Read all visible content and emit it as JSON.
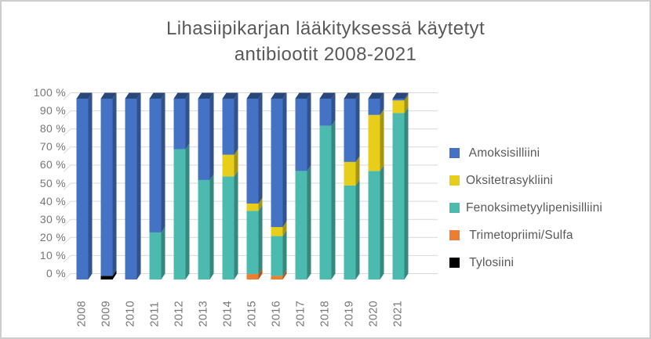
{
  "window": {
    "background": "#ffffff",
    "border_color": "#cdcdcd"
  },
  "chart_data": {
    "type": "bar",
    "variant": "stacked-100-percent-3d-column",
    "title": "Lihasiipikarjan lääkityksessä käytetyt\nantibiootit 2008-2021",
    "categories": [
      "2008",
      "2009",
      "2010",
      "2011",
      "2012",
      "2013",
      "2014",
      "2015",
      "2016",
      "2017",
      "2018",
      "2019",
      "2020",
      "2021"
    ],
    "series": [
      {
        "name": "Tylosiini",
        "color": "#000000",
        "values": [
          0,
          2,
          0,
          0,
          0,
          0,
          0,
          0,
          0,
          0,
          0,
          0,
          0,
          0
        ]
      },
      {
        "name": "Trimetopriimi/Sulfa",
        "color": "#ED7D31",
        "values": [
          0,
          0,
          0,
          0,
          0,
          0,
          0,
          3,
          2,
          0,
          0,
          0,
          0,
          0
        ]
      },
      {
        "name": "Fenoksimetyylipenisilliini",
        "color": "#4BBBAF",
        "values": [
          0,
          0,
          0,
          26,
          72,
          55,
          57,
          35,
          22,
          60,
          85,
          52,
          60,
          92
        ]
      },
      {
        "name": "Oksitetrasykliini",
        "color": "#E7CE1B",
        "values": [
          0,
          0,
          0,
          0,
          0,
          0,
          12,
          4,
          5,
          0,
          0,
          13,
          31,
          7
        ]
      },
      {
        "name": "Amoksisilliini",
        "color": "#4472C4",
        "values": [
          100,
          98,
          100,
          74,
          28,
          45,
          31,
          58,
          71,
          40,
          15,
          35,
          9,
          1
        ]
      }
    ],
    "stack_order": "bottom-to-top",
    "y_axis": {
      "min": 0,
      "max": 100,
      "ticks": [
        "100 %",
        "90 %",
        "80 %",
        "70 %",
        "60 %",
        "50 %",
        "40 %",
        "30 %",
        "20 %",
        "10 %",
        "0 %"
      ]
    },
    "grid": true,
    "gridline_color": "#D9D9D9",
    "axis_text_color": "#767676",
    "title_color": "#595959",
    "legend": {
      "position": "right",
      "items": [
        {
          "label": " Amoksisilliini",
          "color": "#4472C4"
        },
        {
          "label": "Oksitetrasykliini",
          "color": "#E7CE1B"
        },
        {
          "label": "Fenoksimetyylipenisilliini",
          "color": "#4BBBAF"
        },
        {
          "label": " Trimetopriimi/Sulfa",
          "color": "#ED7D31"
        },
        {
          "label": " Tylosiini",
          "color": "#000000"
        }
      ]
    }
  }
}
